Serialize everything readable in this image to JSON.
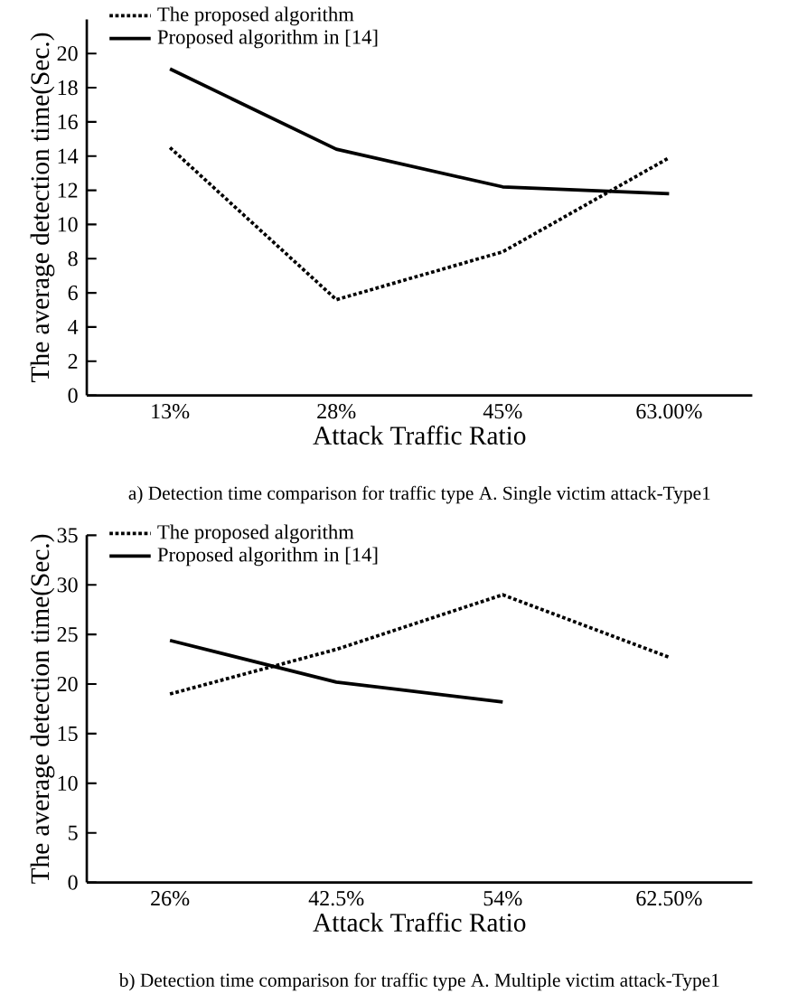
{
  "chart_data": [
    {
      "type": "line",
      "categories": [
        "13%",
        "28%",
        "45%",
        "63.00%"
      ],
      "xlabel": "Attack Traffic Ratio",
      "ylabel": "The average detection time(Sec.)",
      "ylim": [
        0,
        22
      ],
      "yticks": [
        0,
        2,
        4,
        6,
        8,
        10,
        12,
        14,
        16,
        18,
        20
      ],
      "legend": "top left",
      "grid": false,
      "series": [
        {
          "name": "The proposed algorithm",
          "color": "#000000",
          "line_style": "dotted",
          "values": [
            14.5,
            5.6,
            8.4,
            13.9
          ]
        },
        {
          "name": "Proposed algorithm in [14]",
          "color": "#000000",
          "line_style": "solid",
          "values": [
            19.1,
            14.4,
            12.2,
            11.8
          ]
        }
      ],
      "annotations": [
        "a) Detection time comparison for traffic type A. Single victim attack-Type1"
      ]
    },
    {
      "type": "line",
      "categories": [
        "26%",
        "42.5%",
        "54%",
        "62.50%"
      ],
      "xlabel": "Attack Traffic Ratio",
      "ylabel": "The average detection time(Sec.)",
      "ylim": [
        0,
        35
      ],
      "yticks": [
        0,
        5,
        10,
        15,
        20,
        25,
        30,
        35
      ],
      "legend": "top left",
      "grid": false,
      "series": [
        {
          "name": "The proposed algorithm",
          "color": "#000000",
          "line_style": "dotted",
          "values": [
            19,
            23.5,
            29,
            22.7
          ]
        },
        {
          "name": "Proposed algorithm in [14]",
          "color": "#000000",
          "line_style": "solid",
          "values": [
            24.4,
            20.2,
            18.2,
            null
          ]
        }
      ],
      "annotations": [
        "b) Detection time comparison for traffic type A. Multiple victim attack-Type1"
      ]
    }
  ]
}
